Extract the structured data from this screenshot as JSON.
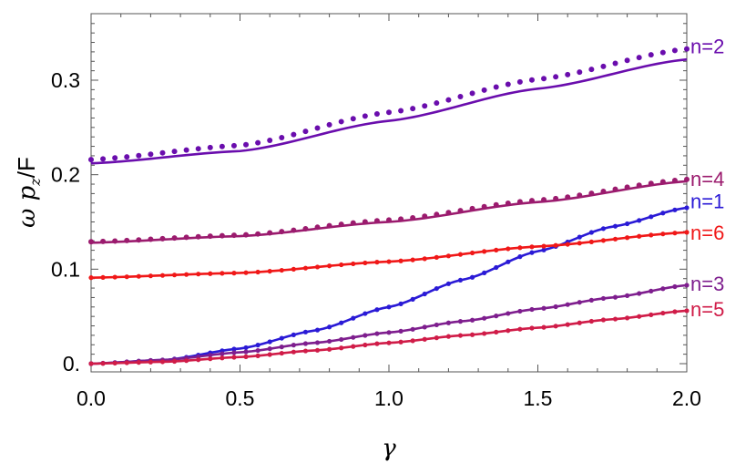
{
  "chart_data": {
    "type": "line",
    "xlabel": "γ",
    "ylabel": {
      "main": "ω p",
      "sub": "z",
      "tail": "/F"
    },
    "xlim": [
      0,
      2.0
    ],
    "ylim": [
      -0.01,
      0.37
    ],
    "x_ticks": [
      0.0,
      0.5,
      1.0,
      1.5,
      2.0
    ],
    "x_tick_labels": [
      "0.0",
      "0.5",
      "1.0",
      "1.5",
      "2.0"
    ],
    "y_ticks": [
      0.0,
      0.1,
      0.2,
      0.3
    ],
    "y_tick_labels": [
      "0.",
      "0.1",
      "0.2",
      "0.3"
    ],
    "grid": false,
    "series": [
      {
        "name": "n=2",
        "color": "#6a0dad",
        "line": [
          [
            0.0,
            0.212
          ],
          [
            0.5,
            0.225
          ],
          [
            1.0,
            0.257
          ],
          [
            1.5,
            0.291
          ],
          [
            2.0,
            0.322
          ]
        ],
        "dots": [
          [
            0.0,
            0.216
          ],
          [
            0.5,
            0.231
          ],
          [
            1.0,
            0.266
          ],
          [
            1.5,
            0.301
          ],
          [
            2.0,
            0.333
          ]
        ],
        "dot_style": "separate"
      },
      {
        "name": "n=4",
        "color": "#9b1b6e",
        "line": [
          [
            0.0,
            0.128
          ],
          [
            0.5,
            0.135
          ],
          [
            1.0,
            0.15
          ],
          [
            1.5,
            0.171
          ],
          [
            2.0,
            0.193
          ]
        ],
        "dots": [
          [
            0.0,
            0.129
          ],
          [
            0.5,
            0.136
          ],
          [
            1.0,
            0.152
          ],
          [
            1.5,
            0.173
          ],
          [
            2.0,
            0.195
          ]
        ],
        "dot_style": "separate"
      },
      {
        "name": "n=1",
        "color": "#2a1ad6",
        "line": [
          [
            0.0,
            0.0
          ],
          [
            0.25,
            0.004
          ],
          [
            0.5,
            0.016
          ],
          [
            0.75,
            0.035
          ],
          [
            1.0,
            0.06
          ],
          [
            1.25,
            0.089
          ],
          [
            1.5,
            0.119
          ],
          [
            1.75,
            0.145
          ],
          [
            2.0,
            0.165
          ]
        ],
        "dots": [
          [
            0.0,
            0.0
          ],
          [
            0.25,
            0.004
          ],
          [
            0.5,
            0.016
          ],
          [
            0.75,
            0.035
          ],
          [
            1.0,
            0.06
          ],
          [
            1.25,
            0.089
          ],
          [
            1.5,
            0.119
          ],
          [
            1.75,
            0.145
          ],
          [
            2.0,
            0.165
          ]
        ],
        "dot_style": "on-line"
      },
      {
        "name": "n=6",
        "color": "#f01818",
        "line": [
          [
            0.0,
            0.091
          ],
          [
            0.5,
            0.096
          ],
          [
            1.0,
            0.108
          ],
          [
            1.5,
            0.124
          ],
          [
            2.0,
            0.139
          ]
        ],
        "dots": [
          [
            0.0,
            0.091
          ],
          [
            0.5,
            0.096
          ],
          [
            1.0,
            0.108
          ],
          [
            1.5,
            0.124
          ],
          [
            2.0,
            0.139
          ]
        ],
        "dot_style": "on-line"
      },
      {
        "name": "n=3",
        "color": "#7e1e8e",
        "line": [
          [
            0.0,
            0.0
          ],
          [
            0.25,
            0.004
          ],
          [
            0.5,
            0.012
          ],
          [
            0.75,
            0.022
          ],
          [
            1.0,
            0.033
          ],
          [
            1.25,
            0.045
          ],
          [
            1.5,
            0.058
          ],
          [
            1.75,
            0.07
          ],
          [
            2.0,
            0.083
          ]
        ],
        "dots": [
          [
            0.0,
            0.0
          ],
          [
            0.25,
            0.004
          ],
          [
            0.5,
            0.012
          ],
          [
            0.75,
            0.022
          ],
          [
            1.0,
            0.033
          ],
          [
            1.25,
            0.045
          ],
          [
            1.5,
            0.058
          ],
          [
            1.75,
            0.07
          ],
          [
            2.0,
            0.083
          ]
        ],
        "dot_style": "on-line"
      },
      {
        "name": "n=5",
        "color": "#d01c48",
        "line": [
          [
            0.0,
            0.0
          ],
          [
            0.25,
            0.002
          ],
          [
            0.5,
            0.007
          ],
          [
            0.75,
            0.014
          ],
          [
            1.0,
            0.022
          ],
          [
            1.25,
            0.03
          ],
          [
            1.5,
            0.038
          ],
          [
            1.75,
            0.047
          ],
          [
            2.0,
            0.056
          ]
        ],
        "dots": [
          [
            0.0,
            0.0
          ],
          [
            0.25,
            0.002
          ],
          [
            0.5,
            0.007
          ],
          [
            0.75,
            0.014
          ],
          [
            1.0,
            0.022
          ],
          [
            1.25,
            0.03
          ],
          [
            1.5,
            0.038
          ],
          [
            1.75,
            0.047
          ],
          [
            2.0,
            0.056
          ]
        ],
        "dot_style": "on-line"
      }
    ]
  }
}
